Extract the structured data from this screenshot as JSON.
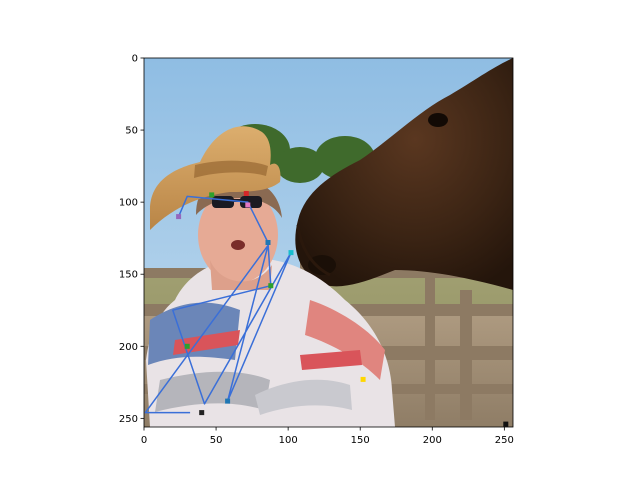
{
  "chart_data": {
    "type": "scatter",
    "title": "",
    "xlabel": "",
    "ylabel": "",
    "xlim": [
      0,
      256
    ],
    "ylim": [
      256,
      0
    ],
    "y_inverted": true,
    "grid": false,
    "xticks": [
      0,
      50,
      100,
      150,
      200,
      250
    ],
    "yticks": [
      0,
      50,
      100,
      150,
      200,
      250
    ],
    "background_image": "photo-woman-cowboy-hat-horse",
    "series": [
      {
        "type": "line",
        "color": "#3a6fd8",
        "points": [
          [
            24,
            110
          ],
          [
            30,
            96
          ],
          [
            72,
            100
          ],
          [
            86,
            128
          ],
          [
            88,
            158
          ],
          [
            20,
            175
          ],
          [
            42,
            240
          ],
          [
            102,
            135
          ],
          [
            58,
            238
          ],
          [
            86,
            130
          ],
          [
            1,
            246
          ],
          [
            32,
            246
          ]
        ]
      }
    ],
    "markers": [
      {
        "x": 47,
        "y": 95,
        "color": "#2ca02c"
      },
      {
        "x": 71,
        "y": 94,
        "color": "#d62728"
      },
      {
        "x": 72,
        "y": 102,
        "color": "#e377c2"
      },
      {
        "x": 24,
        "y": 110,
        "color": "#9467bd"
      },
      {
        "x": 86,
        "y": 128,
        "color": "#1f77b4"
      },
      {
        "x": 102,
        "y": 135,
        "color": "#17becf"
      },
      {
        "x": 88,
        "y": 158,
        "color": "#2ca02c"
      },
      {
        "x": 30,
        "y": 200,
        "color": "#2ca02c"
      },
      {
        "x": 152,
        "y": 223,
        "color": "#ffd700"
      },
      {
        "x": 58,
        "y": 238,
        "color": "#1f77b4"
      },
      {
        "x": 40,
        "y": 246,
        "color": "#222222"
      },
      {
        "x": 251,
        "y": 254,
        "color": "#111111"
      }
    ]
  }
}
